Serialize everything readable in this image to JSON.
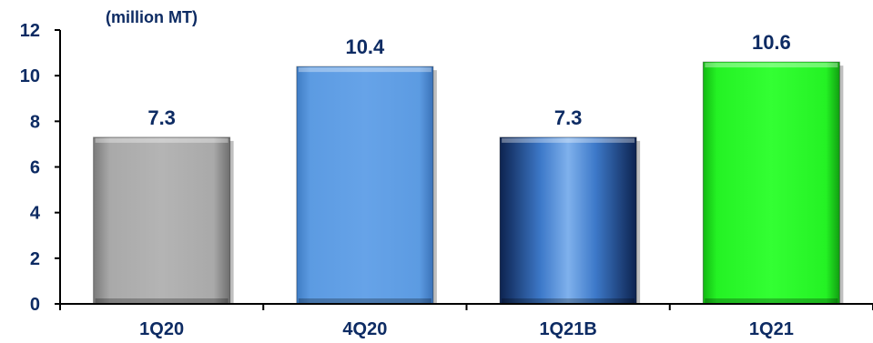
{
  "chart_data": {
    "type": "bar",
    "title": "",
    "unit_label": "(million MT)",
    "xlabel": "",
    "ylabel": "",
    "categories": [
      "1Q20",
      "4Q20",
      "1Q21B",
      "1Q21"
    ],
    "values": [
      7.3,
      10.4,
      7.3,
      10.6
    ],
    "value_labels": [
      "7.3",
      "10.4",
      "7.3",
      "10.6"
    ],
    "bar_colors": [
      "#a6a6a6",
      "#5b9be0",
      "#1f4f93",
      "#22ee22"
    ],
    "ylim": [
      0,
      12
    ],
    "yticks": [
      "0",
      "2",
      "4",
      "6",
      "8",
      "10",
      "12"
    ],
    "grid": false,
    "legend": "none"
  }
}
